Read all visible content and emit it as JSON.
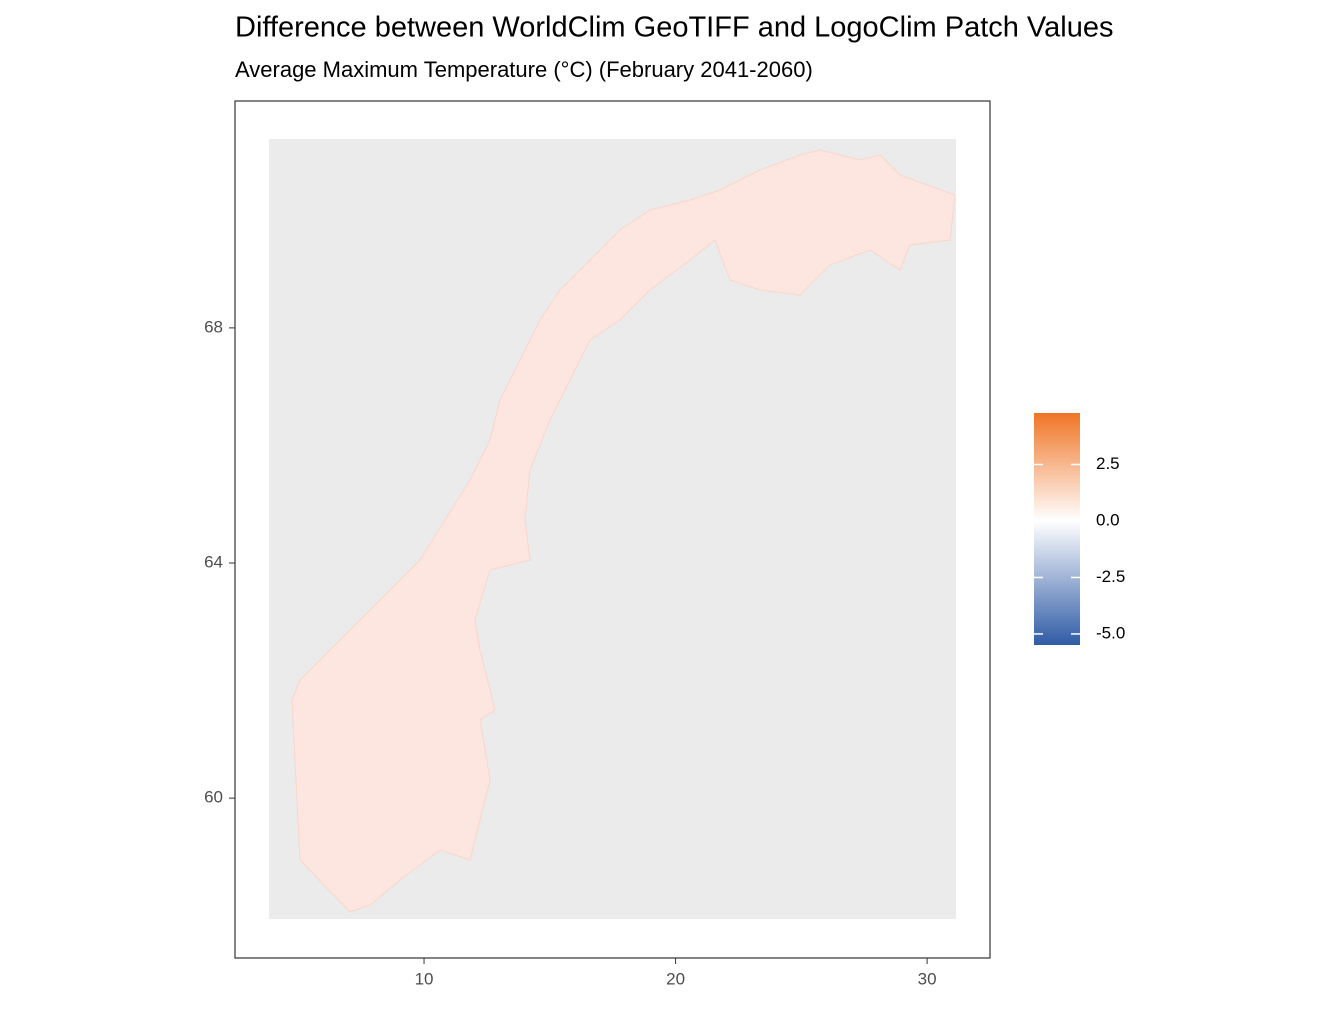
{
  "chart_data": {
    "type": "raster",
    "title": "Difference between WorldClim GeoTIFF and LogoClim Patch Values",
    "subtitle": "Average Maximum Temperature (°C) (February 2041-2060)",
    "xlim": [
      2.485,
      32.5
    ],
    "ylim": [
      57.28,
      71.86
    ],
    "xticks": [
      10,
      20,
      30
    ],
    "yticks": [
      60,
      64,
      68
    ],
    "colorbar": {
      "lim": [
        -5.49,
        4.78
      ],
      "ticks": [
        {
          "value": -5,
          "label": "-5.0"
        },
        -2.5,
        {
          "value": 0,
          "label": "0.0"
        },
        2.5
      ],
      "colors": [
        "#2f5ba6",
        "#ffffff",
        "#f07526"
      ]
    }
  }
}
